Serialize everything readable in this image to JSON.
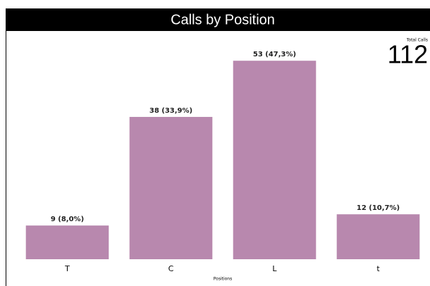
{
  "chart_data": {
    "type": "bar",
    "title": "Calls by Position",
    "categories": [
      "T",
      "C",
      "L",
      "t"
    ],
    "values": [
      9,
      38,
      53,
      12
    ],
    "value_labels": [
      "9 (8,0%)",
      "38 (33,9%)",
      "53 (47,3%)",
      "12 (10,7%)"
    ],
    "color": "#b888ae",
    "ylim": [
      0,
      60
    ],
    "x_label": "Positions",
    "total_label": "Total Calls",
    "total": 112
  }
}
